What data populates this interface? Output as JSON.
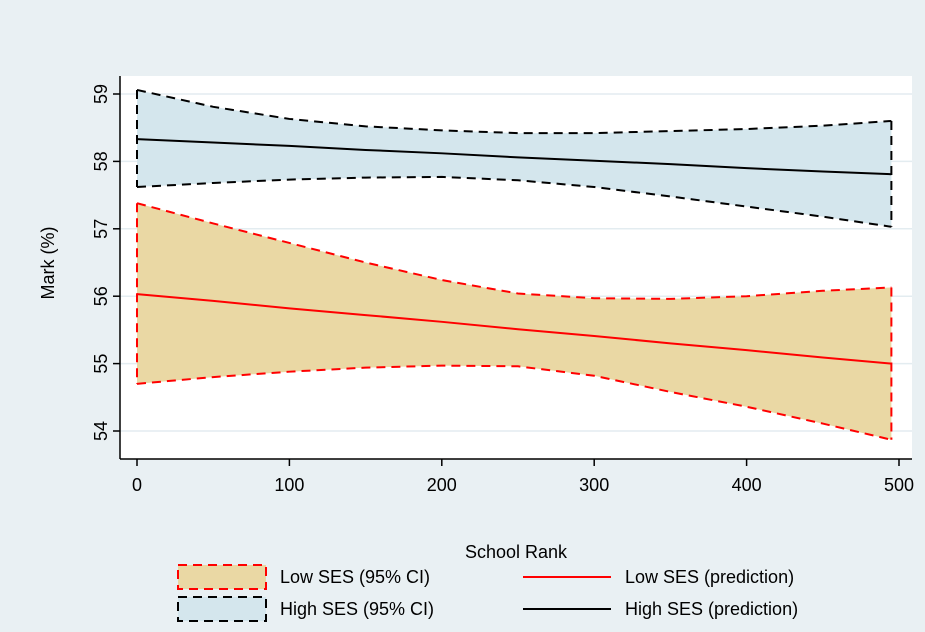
{
  "chart_data": {
    "type": "line",
    "title": "",
    "xlabel": "School Rank",
    "ylabel": "Mark (%)",
    "xlim": [
      0,
      500
    ],
    "ylim": [
      54,
      59
    ],
    "xticks": [
      "0",
      "100",
      "200",
      "300",
      "400",
      "500"
    ],
    "yticks": [
      "54",
      "55",
      "56",
      "57",
      "58",
      "59"
    ],
    "grid": true,
    "legend_position": "bottom",
    "colors": {
      "background": "#e9f0f3",
      "plot_background": "#ffffff",
      "grid": "#e3ecf0",
      "low_band_fill": "#ead8a4",
      "high_band_fill": "#d4e6ed",
      "low_line": "#ff0000",
      "high_line": "#000000"
    },
    "x": [
      0,
      50,
      100,
      150,
      200,
      250,
      300,
      350,
      400,
      450,
      495
    ],
    "series": [
      {
        "name": "Low SES (prediction)",
        "kind": "line",
        "color": "#ff0000",
        "values": [
          56.03,
          55.93,
          55.82,
          55.72,
          55.62,
          55.51,
          55.41,
          55.3,
          55.2,
          55.09,
          55.0
        ]
      },
      {
        "name": "Low SES (95% CI)",
        "kind": "band",
        "color": "#ff0000",
        "upper": [
          57.38,
          57.08,
          56.79,
          56.5,
          56.24,
          56.04,
          55.97,
          55.96,
          56.0,
          56.08,
          56.13
        ],
        "lower": [
          54.7,
          54.8,
          54.88,
          54.94,
          54.97,
          54.96,
          54.82,
          54.58,
          54.36,
          54.11,
          53.87
        ]
      },
      {
        "name": "High SES (prediction)",
        "kind": "line",
        "color": "#000000",
        "values": [
          58.33,
          58.28,
          58.23,
          58.17,
          58.12,
          58.06,
          58.01,
          57.96,
          57.9,
          57.85,
          57.81
        ]
      },
      {
        "name": "High SES (95% CI)",
        "kind": "band",
        "color": "#000000",
        "upper": [
          59.06,
          58.81,
          58.63,
          58.52,
          58.46,
          58.42,
          58.42,
          58.45,
          58.48,
          58.53,
          58.6
        ],
        "lower": [
          57.62,
          57.68,
          57.73,
          57.76,
          57.77,
          57.72,
          57.62,
          57.48,
          57.33,
          57.18,
          57.03
        ]
      }
    ],
    "legend": [
      {
        "label": "Low SES (95% CI)",
        "kind": "band",
        "fill": "#ead8a4",
        "stroke": "#ff0000"
      },
      {
        "label": "Low SES (prediction)",
        "kind": "line",
        "stroke": "#ff0000"
      },
      {
        "label": "High SES (95% CI)",
        "kind": "band",
        "fill": "#d4e6ed",
        "stroke": "#000000"
      },
      {
        "label": "High SES (prediction)",
        "kind": "line",
        "stroke": "#000000"
      }
    ]
  }
}
